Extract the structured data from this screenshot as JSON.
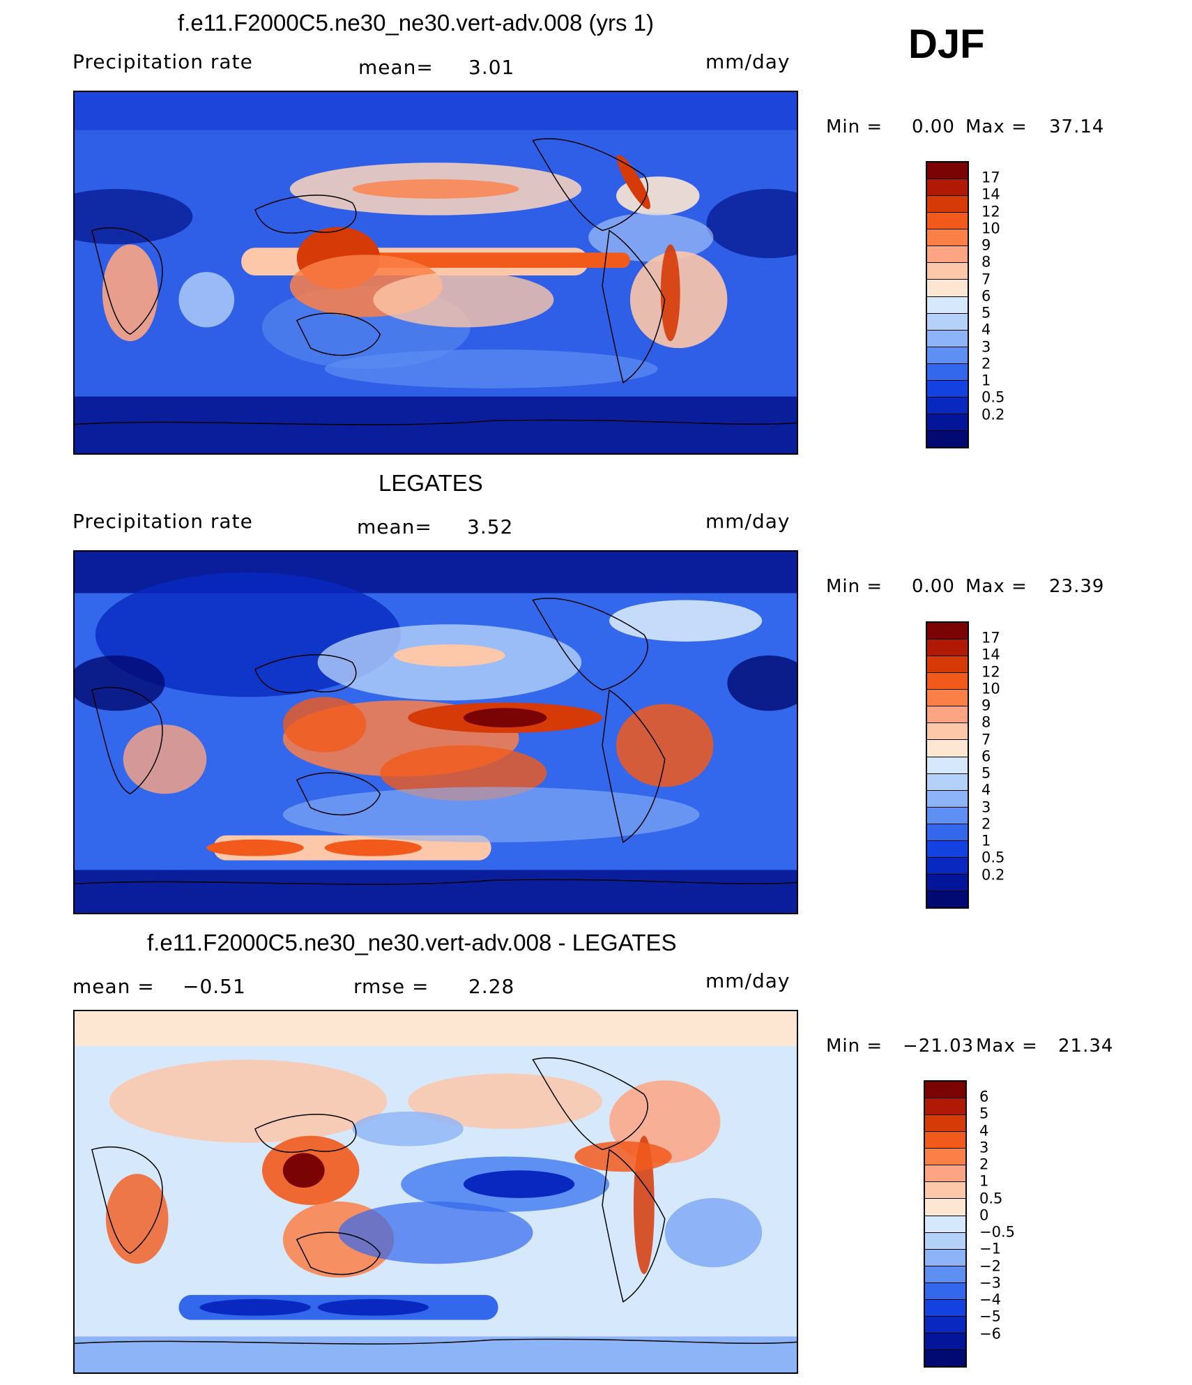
{
  "season": "DJF",
  "panels": [
    {
      "title": "f.e11.F2000C5.ne30_ne30.vert-adv.008 (yrs 1)",
      "variable": "Precipitation rate",
      "stat1_label": "mean=",
      "stat1_value": "3.01",
      "units": "mm/day",
      "min_label": "Min =",
      "min_value": "0.00",
      "max_label": "Max =",
      "max_value": "37.14",
      "colorbar": {
        "colors": [
          "#7a0403",
          "#b01a04",
          "#d63a07",
          "#f25a1c",
          "#fb8048",
          "#fda582",
          "#fdc7a9",
          "#fde7d3",
          "#d6e8fb",
          "#b4d1fa",
          "#8db4f7",
          "#5e8ff3",
          "#3368ec",
          "#1442e0",
          "#0828c0",
          "#031699",
          "#010a73"
        ],
        "labels": [
          "17",
          "14",
          "12",
          "10",
          "9",
          "8",
          "7",
          "6",
          "5",
          "4",
          "3",
          "2",
          "1",
          "0.5",
          "0.2"
        ]
      }
    },
    {
      "title": "LEGATES",
      "variable": "Precipitation rate",
      "stat1_label": "mean=",
      "stat1_value": "3.52",
      "units": "mm/day",
      "min_label": "Min =",
      "min_value": "0.00",
      "max_label": "Max =",
      "max_value": "23.39",
      "colorbar": {
        "colors": [
          "#7a0403",
          "#b01a04",
          "#d63a07",
          "#f25a1c",
          "#fb8048",
          "#fda582",
          "#fdc7a9",
          "#fde7d3",
          "#d6e8fb",
          "#b4d1fa",
          "#8db4f7",
          "#5e8ff3",
          "#3368ec",
          "#1442e0",
          "#0828c0",
          "#031699",
          "#010a73"
        ],
        "labels": [
          "17",
          "14",
          "12",
          "10",
          "9",
          "8",
          "7",
          "6",
          "5",
          "4",
          "3",
          "2",
          "1",
          "0.5",
          "0.2"
        ]
      }
    },
    {
      "title": "f.e11.F2000C5.ne30_ne30.vert-adv.008 - LEGATES",
      "stat1_label": "mean =",
      "stat1_value": "−0.51",
      "stat2_label": "rmse =",
      "stat2_value": "2.28",
      "units": "mm/day",
      "min_label": "Min =",
      "min_value": "−21.03",
      "max_label": "Max =",
      "max_value": "21.34",
      "colorbar": {
        "colors": [
          "#7a0403",
          "#b01a04",
          "#d63a07",
          "#f25a1c",
          "#fb8048",
          "#fda582",
          "#fdc7a9",
          "#fde7d3",
          "#d6e8fb",
          "#b4d1fa",
          "#8db4f7",
          "#5e8ff3",
          "#3368ec",
          "#1442e0",
          "#0828c0",
          "#031699",
          "#010a73"
        ],
        "labels": [
          "6",
          "5",
          "4",
          "3",
          "2",
          "1",
          "0.5",
          "0",
          "−0.5",
          "−1",
          "−2",
          "−3",
          "−4",
          "−5",
          "−6"
        ]
      }
    }
  ]
}
